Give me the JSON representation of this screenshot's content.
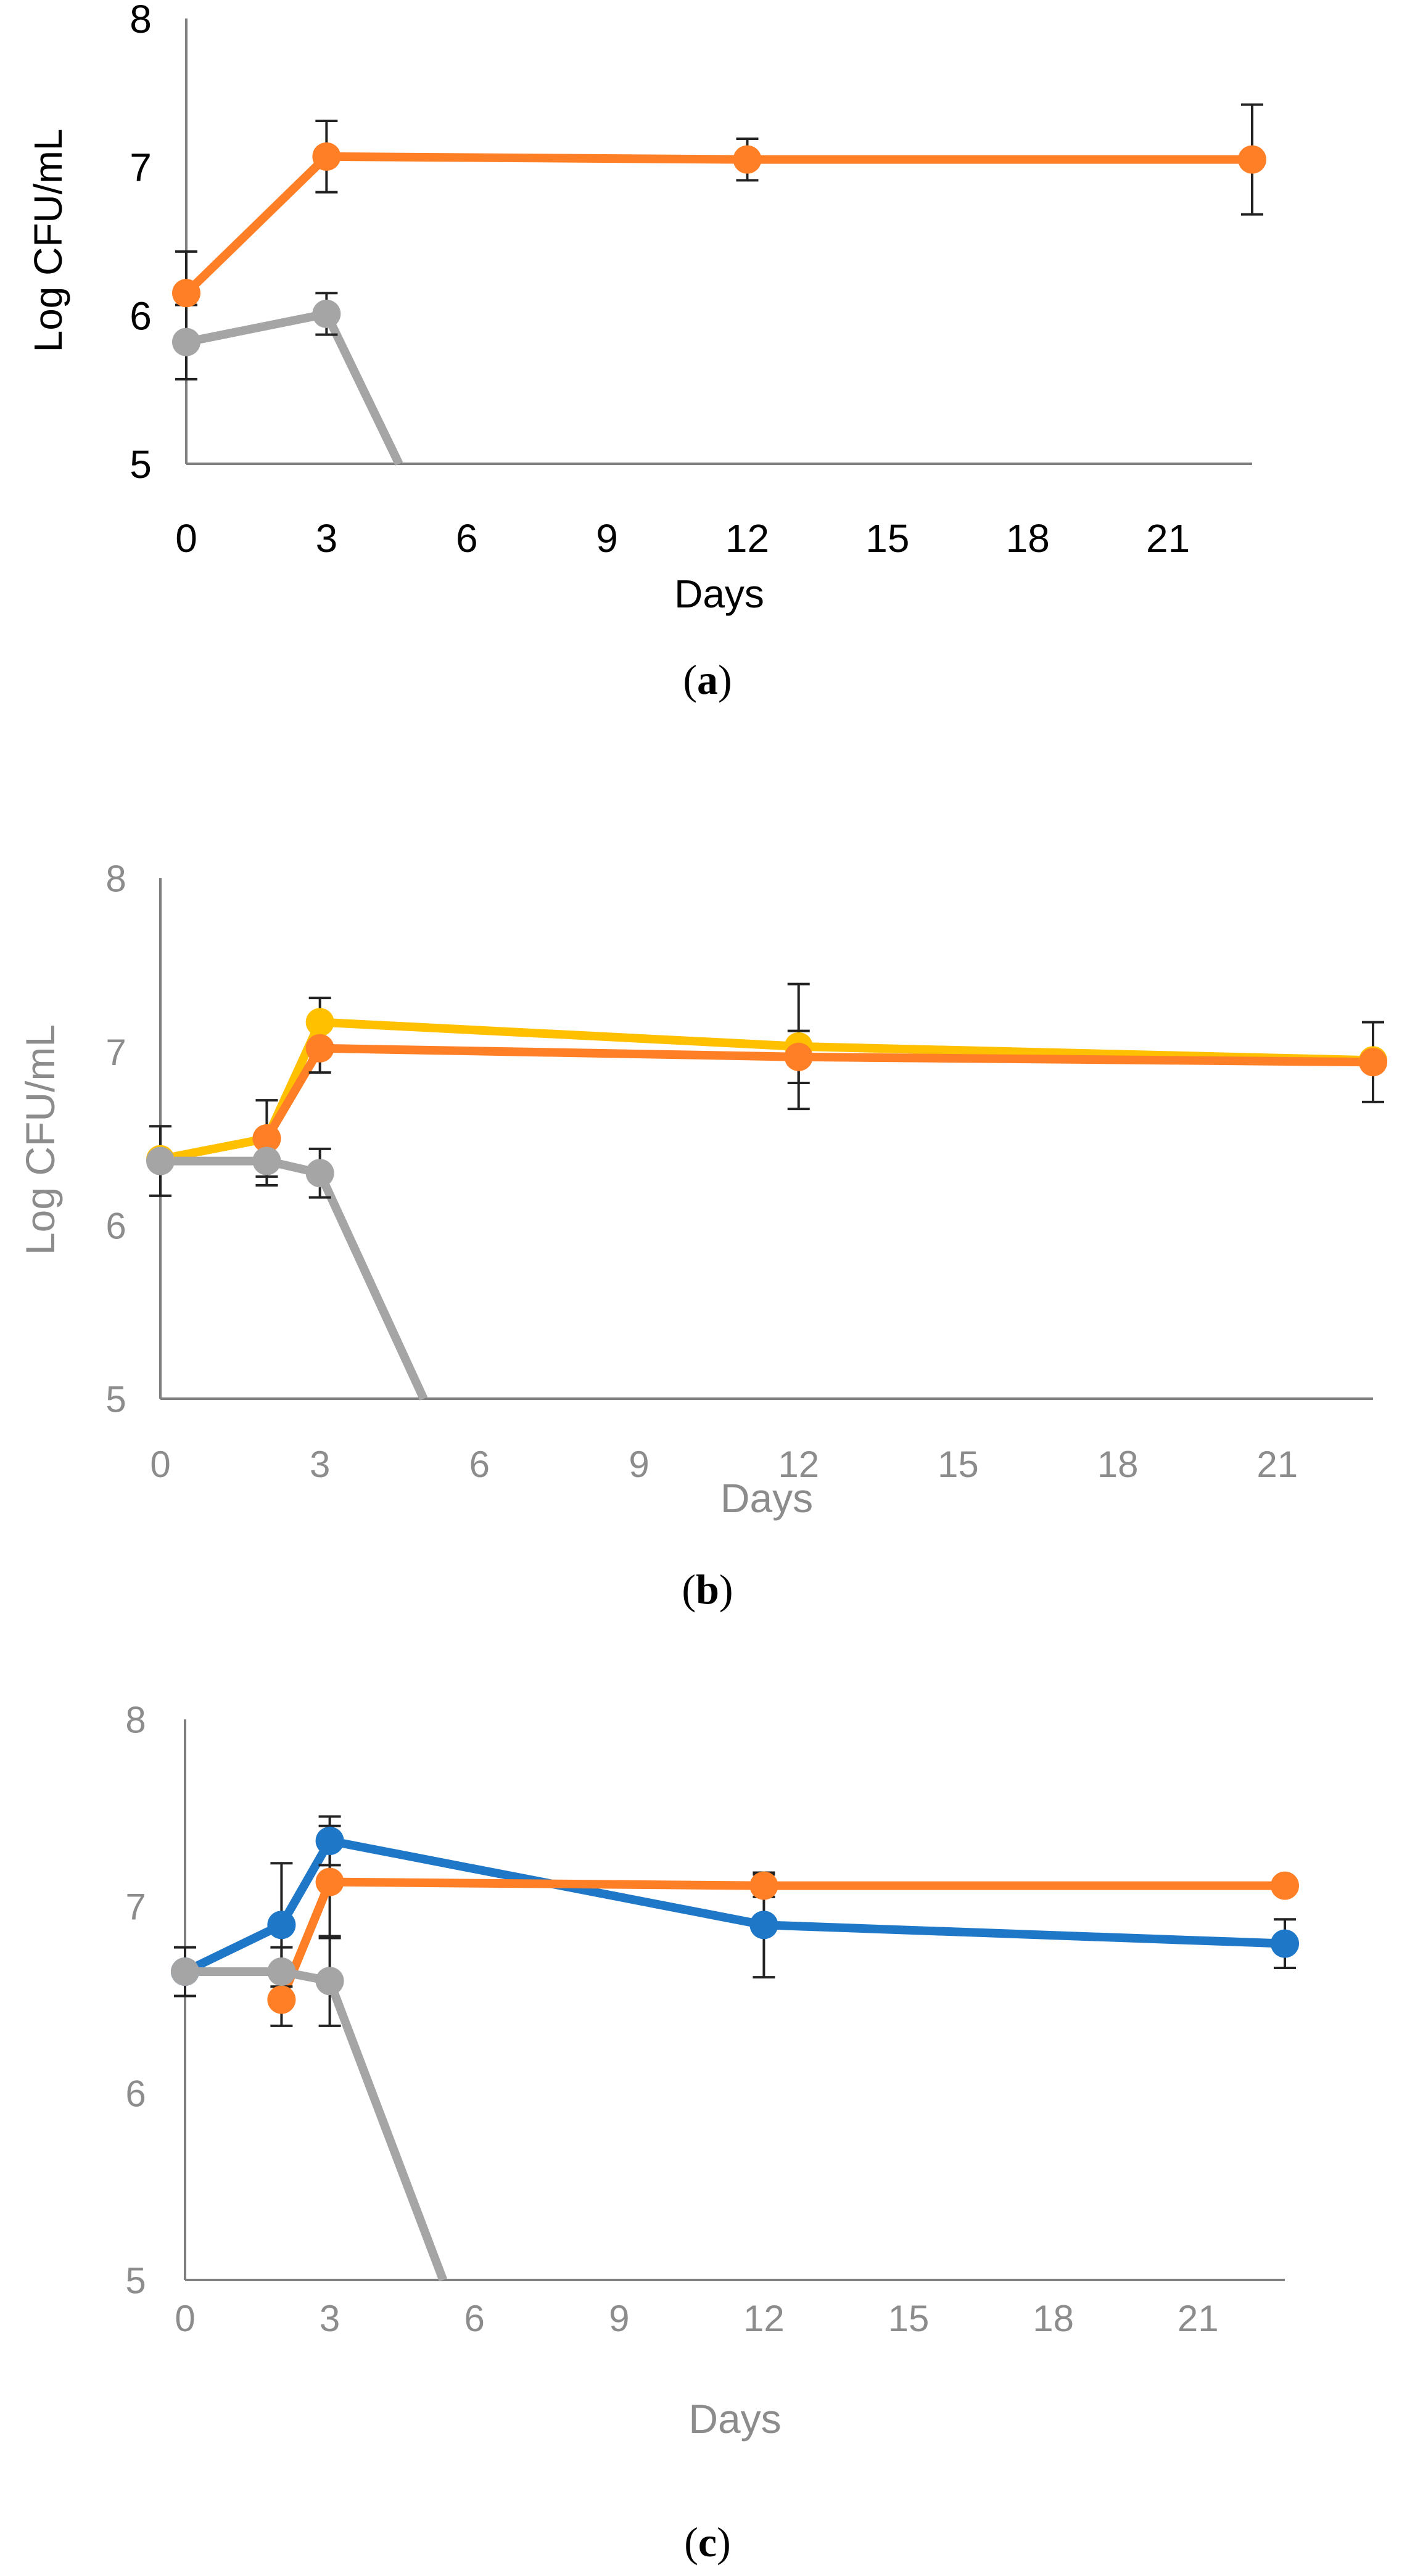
{
  "chart_data": [
    {
      "panel": "a",
      "type": "line",
      "caption_open": "(",
      "caption_letter": "a",
      "caption_close": ")",
      "xlabel": "Days",
      "ylabel": "Log CFU/mL",
      "xlim": [
        0,
        22.8
      ],
      "ylim": [
        5,
        8
      ],
      "x_ticks": [
        0,
        3,
        6,
        9,
        12,
        15,
        18,
        21
      ],
      "y_ticks": [
        5,
        6,
        7,
        8
      ],
      "text_color": "#000000",
      "series": [
        {
          "name": "orange",
          "color": "#FF7F27",
          "x": [
            0,
            3,
            12,
            22.8
          ],
          "y": [
            6.15,
            7.07,
            7.05,
            7.05
          ],
          "err": [
            0.28,
            0.24,
            0.14,
            0.37
          ]
        },
        {
          "name": "gray",
          "color": "#A5A5A5",
          "x": [
            0,
            3,
            4.55
          ],
          "y": [
            5.82,
            6.01,
            5.0
          ],
          "markers": [
            true,
            true,
            false
          ],
          "err": [
            0.25,
            0.14,
            null
          ]
        }
      ]
    },
    {
      "panel": "b",
      "type": "line",
      "caption_open": "(",
      "caption_letter": "b",
      "caption_close": ")",
      "xlabel": "Days",
      "ylabel": "Log CFU/mL",
      "xlim": [
        0,
        22.8
      ],
      "ylim": [
        5,
        8
      ],
      "x_ticks": [
        0,
        3,
        6,
        9,
        12,
        15,
        18,
        21
      ],
      "y_ticks": [
        5,
        6,
        7,
        8
      ],
      "text_color": "#8C8C8C",
      "series": [
        {
          "name": "yellow",
          "color": "#FFC000",
          "x": [
            0,
            2,
            3,
            12,
            22.8
          ],
          "y": [
            6.38,
            6.5,
            7.17,
            7.03,
            6.95
          ],
          "err": [
            null,
            null,
            0.14,
            0.36,
            null
          ]
        },
        {
          "name": "orange",
          "color": "#FF7F27",
          "x": [
            2,
            3,
            12,
            22.8
          ],
          "y": [
            6.5,
            7.02,
            6.97,
            6.94
          ],
          "err": [
            0.22,
            0.14,
            0.15,
            0.23
          ]
        },
        {
          "name": "gray",
          "color": "#A5A5A5",
          "x": [
            0,
            2,
            3,
            4.95
          ],
          "y": [
            6.37,
            6.37,
            6.3,
            5.0
          ],
          "markers": [
            true,
            true,
            true,
            false
          ],
          "err": [
            0.2,
            0.14,
            0.14,
            null
          ]
        }
      ]
    },
    {
      "panel": "c",
      "type": "line",
      "caption_open": "(",
      "caption_letter": "c",
      "caption_close": ")",
      "xlabel": "Days",
      "ylabel": "",
      "xlim": [
        0,
        22.8
      ],
      "ylim": [
        5,
        8
      ],
      "x_ticks": [
        0,
        3,
        6,
        9,
        12,
        15,
        18,
        21
      ],
      "y_ticks": [
        5,
        6,
        7,
        8
      ],
      "text_color": "#8C8C8C",
      "series": [
        {
          "name": "blue",
          "color": "#1F77C8",
          "x": [
            0,
            2,
            3,
            12,
            22.8
          ],
          "y": [
            6.65,
            6.9,
            7.35,
            6.9,
            6.8
          ],
          "err": [
            null,
            0.33,
            0.13,
            0.28,
            0.13
          ]
        },
        {
          "name": "orange",
          "color": "#FF7F27",
          "x": [
            2,
            3,
            12,
            22.8
          ],
          "y": [
            6.5,
            7.13,
            7.11,
            7.11
          ],
          "err": [
            0.14,
            0.3,
            0.06,
            null
          ]
        },
        {
          "name": "gray",
          "color": "#A5A5A5",
          "x": [
            0,
            2,
            3,
            5.35
          ],
          "y": [
            6.65,
            6.65,
            6.6,
            5.0
          ],
          "markers": [
            true,
            true,
            true,
            false
          ],
          "err": [
            0.13,
            0.13,
            0.24,
            null
          ]
        }
      ]
    }
  ]
}
